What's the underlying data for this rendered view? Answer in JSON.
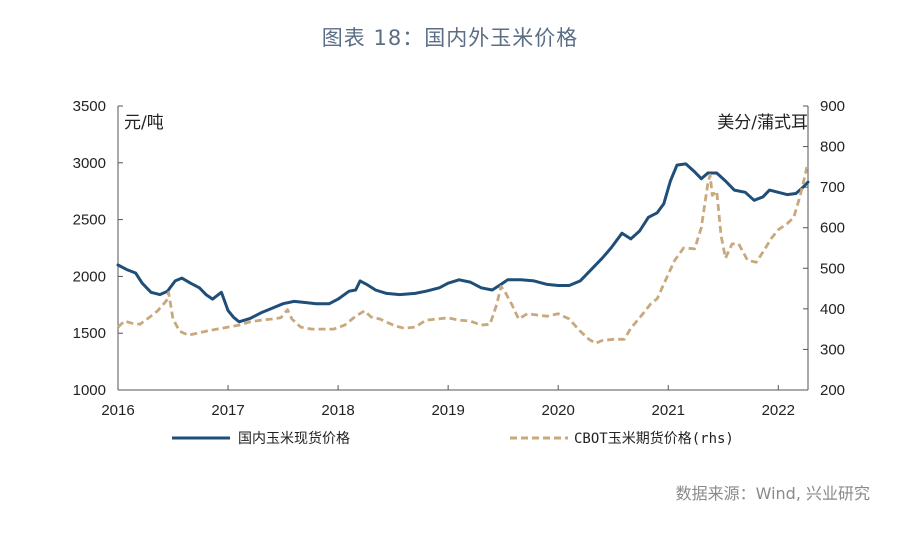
{
  "title": "图表 18：国内外玉米价格",
  "source": "数据来源：Wind, 兴业研究",
  "chart_data": {
    "type": "line",
    "title": "图表 18：国内外玉米价格",
    "x_range": [
      2016.0,
      2022.27
    ],
    "x_ticks": [
      2016,
      2017,
      2018,
      2019,
      2020,
      2021,
      2022
    ],
    "left_axis": {
      "unit": "元/吨",
      "ylim": [
        1000,
        3500
      ],
      "ticks": [
        1000,
        1500,
        2000,
        2500,
        3000,
        3500
      ]
    },
    "right_axis": {
      "unit": "美分/蒲式耳",
      "ylim": [
        200,
        900
      ],
      "ticks": [
        200,
        300,
        400,
        500,
        600,
        700,
        800,
        900
      ]
    },
    "series": [
      {
        "name": "国内玉米现货价格",
        "axis": "left",
        "style": "solid",
        "color": "#1f4e79",
        "points": [
          [
            2016.0,
            2100
          ],
          [
            2016.08,
            2060
          ],
          [
            2016.16,
            2030
          ],
          [
            2016.22,
            1940
          ],
          [
            2016.3,
            1860
          ],
          [
            2016.38,
            1840
          ],
          [
            2016.45,
            1870
          ],
          [
            2016.52,
            1960
          ],
          [
            2016.58,
            1985
          ],
          [
            2016.66,
            1940
          ],
          [
            2016.74,
            1900
          ],
          [
            2016.8,
            1840
          ],
          [
            2016.86,
            1800
          ],
          [
            2016.94,
            1860
          ],
          [
            2017.0,
            1700
          ],
          [
            2017.05,
            1640
          ],
          [
            2017.1,
            1600
          ],
          [
            2017.2,
            1630
          ],
          [
            2017.3,
            1680
          ],
          [
            2017.4,
            1720
          ],
          [
            2017.5,
            1760
          ],
          [
            2017.6,
            1780
          ],
          [
            2017.7,
            1770
          ],
          [
            2017.8,
            1760
          ],
          [
            2017.92,
            1760
          ],
          [
            2018.0,
            1800
          ],
          [
            2018.1,
            1870
          ],
          [
            2018.16,
            1880
          ],
          [
            2018.2,
            1960
          ],
          [
            2018.26,
            1930
          ],
          [
            2018.34,
            1880
          ],
          [
            2018.44,
            1850
          ],
          [
            2018.56,
            1840
          ],
          [
            2018.7,
            1850
          ],
          [
            2018.8,
            1870
          ],
          [
            2018.92,
            1900
          ],
          [
            2019.0,
            1940
          ],
          [
            2019.1,
            1970
          ],
          [
            2019.2,
            1950
          ],
          [
            2019.3,
            1900
          ],
          [
            2019.4,
            1880
          ],
          [
            2019.48,
            1930
          ],
          [
            2019.54,
            1970
          ],
          [
            2019.66,
            1970
          ],
          [
            2019.78,
            1960
          ],
          [
            2019.9,
            1930
          ],
          [
            2020.0,
            1920
          ],
          [
            2020.1,
            1920
          ],
          [
            2020.2,
            1960
          ],
          [
            2020.3,
            2060
          ],
          [
            2020.4,
            2160
          ],
          [
            2020.48,
            2250
          ],
          [
            2020.58,
            2380
          ],
          [
            2020.66,
            2330
          ],
          [
            2020.74,
            2400
          ],
          [
            2020.82,
            2520
          ],
          [
            2020.9,
            2560
          ],
          [
            2020.96,
            2640
          ],
          [
            2021.02,
            2840
          ],
          [
            2021.08,
            2980
          ],
          [
            2021.16,
            2990
          ],
          [
            2021.24,
            2920
          ],
          [
            2021.3,
            2860
          ],
          [
            2021.36,
            2910
          ],
          [
            2021.44,
            2910
          ],
          [
            2021.52,
            2840
          ],
          [
            2021.6,
            2760
          ],
          [
            2021.7,
            2740
          ],
          [
            2021.78,
            2670
          ],
          [
            2021.86,
            2700
          ],
          [
            2021.92,
            2760
          ],
          [
            2022.0,
            2740
          ],
          [
            2022.08,
            2720
          ],
          [
            2022.16,
            2730
          ],
          [
            2022.22,
            2780
          ],
          [
            2022.27,
            2830
          ]
        ]
      },
      {
        "name": "CBOT玉米期货价格(rhs)",
        "axis": "right",
        "style": "dashed",
        "color": "#c8a97e",
        "points": [
          [
            2016.0,
            355
          ],
          [
            2016.06,
            370
          ],
          [
            2016.12,
            365
          ],
          [
            2016.2,
            362
          ],
          [
            2016.28,
            378
          ],
          [
            2016.36,
            395
          ],
          [
            2016.44,
            420
          ],
          [
            2016.46,
            440
          ],
          [
            2016.5,
            375
          ],
          [
            2016.56,
            345
          ],
          [
            2016.64,
            335
          ],
          [
            2016.72,
            340
          ],
          [
            2016.8,
            345
          ],
          [
            2016.9,
            350
          ],
          [
            2017.0,
            355
          ],
          [
            2017.1,
            360
          ],
          [
            2017.2,
            368
          ],
          [
            2017.3,
            372
          ],
          [
            2017.4,
            375
          ],
          [
            2017.48,
            378
          ],
          [
            2017.54,
            398
          ],
          [
            2017.58,
            375
          ],
          [
            2017.66,
            355
          ],
          [
            2017.76,
            350
          ],
          [
            2017.86,
            350
          ],
          [
            2017.96,
            350
          ],
          [
            2018.06,
            360
          ],
          [
            2018.16,
            382
          ],
          [
            2018.24,
            395
          ],
          [
            2018.3,
            380
          ],
          [
            2018.38,
            375
          ],
          [
            2018.46,
            365
          ],
          [
            2018.52,
            358
          ],
          [
            2018.6,
            352
          ],
          [
            2018.7,
            355
          ],
          [
            2018.8,
            372
          ],
          [
            2018.9,
            375
          ],
          [
            2019.0,
            378
          ],
          [
            2019.1,
            372
          ],
          [
            2019.2,
            370
          ],
          [
            2019.3,
            360
          ],
          [
            2019.38,
            362
          ],
          [
            2019.44,
            410
          ],
          [
            2019.48,
            455
          ],
          [
            2019.52,
            440
          ],
          [
            2019.58,
            410
          ],
          [
            2019.64,
            375
          ],
          [
            2019.72,
            388
          ],
          [
            2019.8,
            385
          ],
          [
            2019.9,
            382
          ],
          [
            2020.0,
            388
          ],
          [
            2020.1,
            375
          ],
          [
            2020.2,
            345
          ],
          [
            2020.28,
            325
          ],
          [
            2020.34,
            315
          ],
          [
            2020.4,
            322
          ],
          [
            2020.5,
            325
          ],
          [
            2020.6,
            325
          ],
          [
            2020.66,
            352
          ],
          [
            2020.74,
            378
          ],
          [
            2020.84,
            412
          ],
          [
            2020.9,
            425
          ],
          [
            2021.0,
            485
          ],
          [
            2021.06,
            520
          ],
          [
            2021.14,
            550
          ],
          [
            2021.24,
            548
          ],
          [
            2021.3,
            600
          ],
          [
            2021.36,
            710
          ],
          [
            2021.38,
            730
          ],
          [
            2021.4,
            680
          ],
          [
            2021.44,
            690
          ],
          [
            2021.48,
            580
          ],
          [
            2021.52,
            525
          ],
          [
            2021.58,
            560
          ],
          [
            2021.64,
            560
          ],
          [
            2021.72,
            520
          ],
          [
            2021.8,
            515
          ],
          [
            2021.86,
            540
          ],
          [
            2021.94,
            575
          ],
          [
            2022.0,
            595
          ],
          [
            2022.08,
            610
          ],
          [
            2022.14,
            625
          ],
          [
            2022.2,
            680
          ],
          [
            2022.24,
            725
          ],
          [
            2022.26,
            750
          ]
        ]
      }
    ]
  }
}
